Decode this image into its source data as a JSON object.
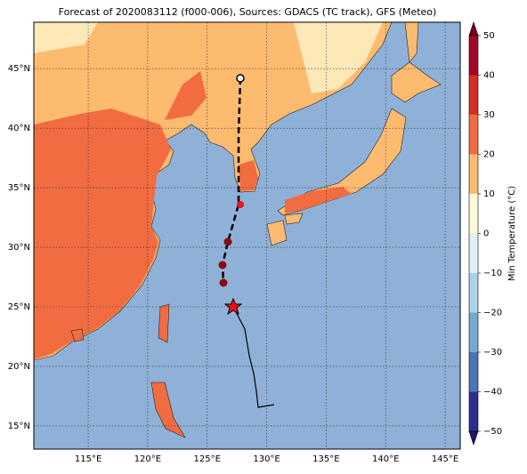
{
  "title": "Forecast of 2020083112 (f000-006), Sources: GDACS (TC track), GFS (Meteo)",
  "map": {
    "xlim": [
      110.43,
      146.27
    ],
    "ylim": [
      13.05,
      48.9
    ],
    "xticks": [
      {
        "value": 115,
        "label": "115°E"
      },
      {
        "value": 120,
        "label": "120°E"
      },
      {
        "value": 125,
        "label": "125°E"
      },
      {
        "value": 130,
        "label": "130°E"
      },
      {
        "value": 135,
        "label": "135°E"
      },
      {
        "value": 140,
        "label": "140°E"
      },
      {
        "value": 145,
        "label": "145°E"
      }
    ],
    "yticks": [
      {
        "value": 15,
        "label": "15°N"
      },
      {
        "value": 20,
        "label": "20°N"
      },
      {
        "value": 25,
        "label": "25°N"
      },
      {
        "value": 30,
        "label": "30°N"
      },
      {
        "value": 35,
        "label": "35°N"
      },
      {
        "value": 40,
        "label": "40°N"
      },
      {
        "value": 45,
        "label": "45°N"
      }
    ]
  },
  "colorbar": {
    "label": "Min Temperature (°C)",
    "lim": [
      -50,
      50
    ],
    "ticks": [
      {
        "value": -50,
        "label": "−50"
      },
      {
        "value": -40,
        "label": "−40"
      },
      {
        "value": -30,
        "label": "−30"
      },
      {
        "value": -20,
        "label": "−20"
      },
      {
        "value": -10,
        "label": "−10"
      },
      0,
      10,
      20,
      30,
      40,
      50
    ],
    "colors": [
      "#2c2f8f",
      "#4a76b5",
      "#76aad0",
      "#a9d4e7",
      "#ddf1f6",
      "#fcfbd8",
      "#fdbb70",
      "#f26c42",
      "#d62f27",
      "#a3062a"
    ],
    "under_color": "#1a1a60",
    "over_color": "#7a0020"
  }
}
